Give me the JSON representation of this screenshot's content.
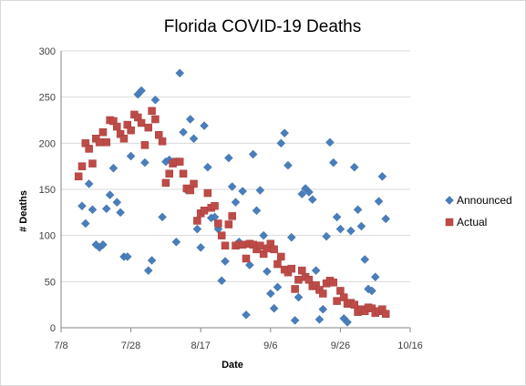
{
  "chart_data": {
    "type": "scatter",
    "title": "Florida COVID-19 Deaths",
    "xlabel": "Date",
    "ylabel": "# Deaths",
    "x_axis": "date",
    "x_ticks": [
      "7/8",
      "7/28",
      "8/17",
      "9/6",
      "9/26",
      "10/16"
    ],
    "xlim": [
      "2020-07-08",
      "2020-10-16"
    ],
    "ylim": [
      0,
      300
    ],
    "y_ticks": [
      0,
      50,
      100,
      150,
      200,
      250,
      300
    ],
    "grid": "y",
    "legend": "right",
    "series": [
      {
        "name": "Announced",
        "marker": "diamond",
        "color": "#4a7ebb",
        "points": [
          [
            "2020-07-14",
            132
          ],
          [
            "2020-07-15",
            113
          ],
          [
            "2020-07-16",
            156
          ],
          [
            "2020-07-17",
            128
          ],
          [
            "2020-07-18",
            90
          ],
          [
            "2020-07-19",
            87
          ],
          [
            "2020-07-20",
            90
          ],
          [
            "2020-07-21",
            129
          ],
          [
            "2020-07-22",
            144
          ],
          [
            "2020-07-23",
            173
          ],
          [
            "2020-07-24",
            136
          ],
          [
            "2020-07-25",
            125
          ],
          [
            "2020-07-26",
            77
          ],
          [
            "2020-07-27",
            77
          ],
          [
            "2020-07-28",
            186
          ],
          [
            "2020-07-30",
            253
          ],
          [
            "2020-07-31",
            257
          ],
          [
            "2020-08-01",
            179
          ],
          [
            "2020-08-02",
            62
          ],
          [
            "2020-08-03",
            73
          ],
          [
            "2020-08-04",
            247
          ],
          [
            "2020-08-06",
            120
          ],
          [
            "2020-08-07",
            180
          ],
          [
            "2020-08-08",
            182
          ],
          [
            "2020-08-10",
            93
          ],
          [
            "2020-08-11",
            276
          ],
          [
            "2020-08-12",
            212
          ],
          [
            "2020-08-13",
            149
          ],
          [
            "2020-08-14",
            226
          ],
          [
            "2020-08-15",
            205
          ],
          [
            "2020-08-16",
            107
          ],
          [
            "2020-08-17",
            87
          ],
          [
            "2020-08-18",
            219
          ],
          [
            "2020-08-19",
            174
          ],
          [
            "2020-08-20",
            119
          ],
          [
            "2020-08-21",
            120
          ],
          [
            "2020-08-22",
            107
          ],
          [
            "2020-08-23",
            51
          ],
          [
            "2020-08-24",
            72
          ],
          [
            "2020-08-25",
            184
          ],
          [
            "2020-08-26",
            153
          ],
          [
            "2020-08-27",
            136
          ],
          [
            "2020-08-28",
            93
          ],
          [
            "2020-08-29",
            148
          ],
          [
            "2020-08-30",
            14
          ],
          [
            "2020-08-31",
            68
          ],
          [
            "2020-09-01",
            188
          ],
          [
            "2020-09-02",
            127
          ],
          [
            "2020-09-03",
            149
          ],
          [
            "2020-09-04",
            100
          ],
          [
            "2020-09-05",
            61
          ],
          [
            "2020-09-06",
            37
          ],
          [
            "2020-09-07",
            21
          ],
          [
            "2020-09-08",
            44
          ],
          [
            "2020-09-09",
            200
          ],
          [
            "2020-09-10",
            211
          ],
          [
            "2020-09-11",
            176
          ],
          [
            "2020-09-12",
            98
          ],
          [
            "2020-09-13",
            8
          ],
          [
            "2020-09-14",
            33
          ],
          [
            "2020-09-15",
            145
          ],
          [
            "2020-09-16",
            151
          ],
          [
            "2020-09-17",
            147
          ],
          [
            "2020-09-18",
            139
          ],
          [
            "2020-09-19",
            62
          ],
          [
            "2020-09-20",
            9
          ],
          [
            "2020-09-21",
            20
          ],
          [
            "2020-09-22",
            99
          ],
          [
            "2020-09-23",
            201
          ],
          [
            "2020-09-24",
            179
          ],
          [
            "2020-09-25",
            120
          ],
          [
            "2020-09-26",
            107
          ],
          [
            "2020-09-27",
            10
          ],
          [
            "2020-09-28",
            6
          ],
          [
            "2020-09-29",
            105
          ],
          [
            "2020-09-30",
            174
          ],
          [
            "2020-10-01",
            128
          ],
          [
            "2020-10-02",
            110
          ],
          [
            "2020-10-03",
            74
          ],
          [
            "2020-10-04",
            42
          ],
          [
            "2020-10-05",
            40
          ],
          [
            "2020-10-06",
            55
          ],
          [
            "2020-10-07",
            137
          ],
          [
            "2020-10-08",
            164
          ],
          [
            "2020-10-09",
            118
          ]
        ]
      },
      {
        "name": "Actual",
        "marker": "square",
        "color": "#be4b48",
        "points": [
          [
            "2020-07-13",
            164
          ],
          [
            "2020-07-14",
            175
          ],
          [
            "2020-07-15",
            200
          ],
          [
            "2020-07-16",
            194
          ],
          [
            "2020-07-17",
            178
          ],
          [
            "2020-07-18",
            205
          ],
          [
            "2020-07-19",
            201
          ],
          [
            "2020-07-20",
            212
          ],
          [
            "2020-07-21",
            201
          ],
          [
            "2020-07-22",
            225
          ],
          [
            "2020-07-23",
            224
          ],
          [
            "2020-07-24",
            218
          ],
          [
            "2020-07-25",
            210
          ],
          [
            "2020-07-26",
            205
          ],
          [
            "2020-07-27",
            220
          ],
          [
            "2020-07-28",
            214
          ],
          [
            "2020-07-29",
            231
          ],
          [
            "2020-07-30",
            228
          ],
          [
            "2020-07-31",
            222
          ],
          [
            "2020-08-01",
            198
          ],
          [
            "2020-08-02",
            217
          ],
          [
            "2020-08-03",
            235
          ],
          [
            "2020-08-04",
            226
          ],
          [
            "2020-08-05",
            209
          ],
          [
            "2020-08-06",
            202
          ],
          [
            "2020-08-07",
            157
          ],
          [
            "2020-08-08",
            167
          ],
          [
            "2020-08-09",
            178
          ],
          [
            "2020-08-10",
            180
          ],
          [
            "2020-08-11",
            180
          ],
          [
            "2020-08-12",
            167
          ],
          [
            "2020-08-13",
            151
          ],
          [
            "2020-08-14",
            149
          ],
          [
            "2020-08-15",
            156
          ],
          [
            "2020-08-16",
            116
          ],
          [
            "2020-08-17",
            124
          ],
          [
            "2020-08-18",
            127
          ],
          [
            "2020-08-19",
            146
          ],
          [
            "2020-08-20",
            130
          ],
          [
            "2020-08-21",
            132
          ],
          [
            "2020-08-22",
            113
          ],
          [
            "2020-08-23",
            100
          ],
          [
            "2020-08-24",
            89
          ],
          [
            "2020-08-25",
            112
          ],
          [
            "2020-08-26",
            121
          ],
          [
            "2020-08-27",
            89
          ],
          [
            "2020-08-28",
            90
          ],
          [
            "2020-08-29",
            90
          ],
          [
            "2020-08-30",
            75
          ],
          [
            "2020-08-31",
            91
          ],
          [
            "2020-09-01",
            90
          ],
          [
            "2020-09-02",
            85
          ],
          [
            "2020-09-03",
            89
          ],
          [
            "2020-09-04",
            80
          ],
          [
            "2020-09-05",
            86
          ],
          [
            "2020-09-06",
            91
          ],
          [
            "2020-09-07",
            85
          ],
          [
            "2020-09-08",
            69
          ],
          [
            "2020-09-09",
            77
          ],
          [
            "2020-09-10",
            63
          ],
          [
            "2020-09-11",
            60
          ],
          [
            "2020-09-12",
            64
          ],
          [
            "2020-09-13",
            42
          ],
          [
            "2020-09-14",
            52
          ],
          [
            "2020-09-15",
            62
          ],
          [
            "2020-09-16",
            55
          ],
          [
            "2020-09-17",
            52
          ],
          [
            "2020-09-18",
            45
          ],
          [
            "2020-09-19",
            46
          ],
          [
            "2020-09-20",
            41
          ],
          [
            "2020-09-21",
            37
          ],
          [
            "2020-09-22",
            48
          ],
          [
            "2020-09-23",
            51
          ],
          [
            "2020-09-24",
            49
          ],
          [
            "2020-09-25",
            29
          ],
          [
            "2020-09-26",
            40
          ],
          [
            "2020-09-27",
            33
          ],
          [
            "2020-09-28",
            26
          ],
          [
            "2020-09-29",
            27
          ],
          [
            "2020-09-30",
            25
          ],
          [
            "2020-10-01",
            17
          ],
          [
            "2020-10-02",
            20
          ],
          [
            "2020-10-03",
            18
          ],
          [
            "2020-10-04",
            22
          ],
          [
            "2020-10-05",
            21
          ],
          [
            "2020-10-06",
            16
          ],
          [
            "2020-10-07",
            18
          ],
          [
            "2020-10-08",
            20
          ],
          [
            "2020-10-09",
            15
          ]
        ]
      }
    ]
  }
}
